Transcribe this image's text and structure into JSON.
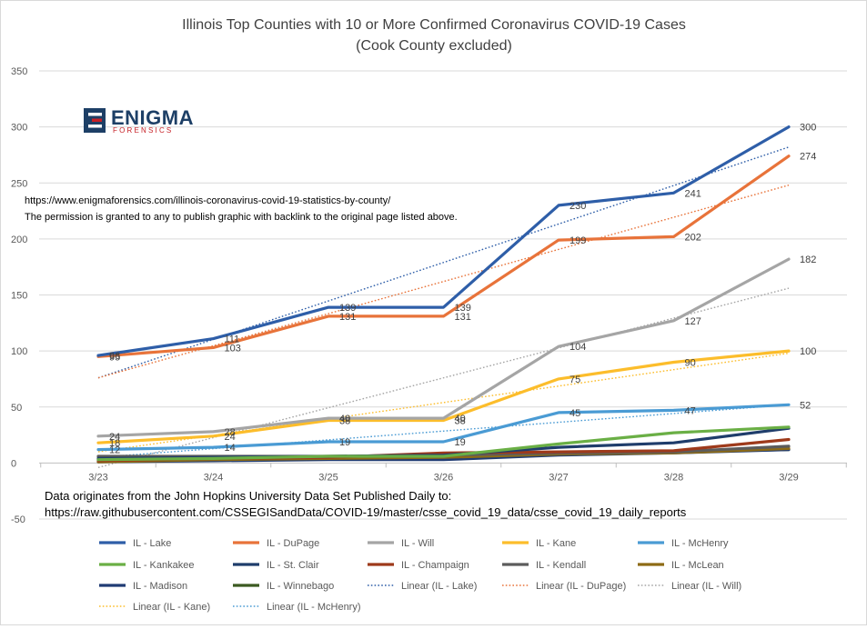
{
  "chart_data": {
    "type": "line",
    "title": "Illinois Top Counties with 10 or More Confirmed Coronavirus COVID-19 Cases",
    "subtitle": "(Cook County excluded)",
    "categories": [
      "3/23",
      "3/24",
      "3/25",
      "3/26",
      "3/27",
      "3/28",
      "3/29"
    ],
    "ylim": [
      -50,
      350
    ],
    "yticks": [
      -50,
      0,
      50,
      100,
      150,
      200,
      250,
      300,
      350
    ],
    "grid": true,
    "legend_position": "bottom",
    "series": [
      {
        "name": "IL - Lake",
        "color": "#2e5ea8",
        "values": [
          96,
          111,
          139,
          139,
          230,
          241,
          300
        ],
        "labels": [
          "96",
          "111",
          "139",
          "139",
          "230",
          "241",
          "300"
        ]
      },
      {
        "name": "IL - DuPage",
        "color": "#e8733a",
        "values": [
          95,
          103,
          131,
          131,
          199,
          202,
          274
        ],
        "labels": [
          "95",
          "103",
          "131",
          "131",
          "199",
          "202",
          "274"
        ]
      },
      {
        "name": "IL - Will",
        "color": "#a5a5a5",
        "values": [
          24,
          28,
          40,
          40,
          104,
          127,
          182
        ],
        "labels": [
          "24",
          "28",
          "40",
          "40",
          "104",
          "127",
          "182"
        ]
      },
      {
        "name": "IL - Kane",
        "color": "#fcbd2b",
        "values": [
          18,
          24,
          38,
          38,
          75,
          90,
          100
        ],
        "labels": [
          "18",
          "24",
          "38",
          "38",
          "75",
          "90",
          "100"
        ]
      },
      {
        "name": "IL - McHenry",
        "color": "#4a9bd4",
        "values": [
          12,
          14,
          19,
          19,
          45,
          47,
          52
        ],
        "labels": [
          "12",
          "14",
          "19",
          "19",
          "45",
          "47",
          "52"
        ]
      },
      {
        "name": "IL - Kankakee",
        "color": "#6aaf45",
        "values": [
          3,
          4,
          6,
          6,
          17,
          27,
          32
        ],
        "labels": []
      },
      {
        "name": "IL - St. Clair",
        "color": "#1f3d6b",
        "values": [
          4,
          5,
          6,
          7,
          14,
          18,
          31
        ],
        "labels": []
      },
      {
        "name": "IL - Champaign",
        "color": "#9e3a1b",
        "values": [
          2,
          4,
          5,
          9,
          10,
          11,
          21
        ],
        "labels": []
      },
      {
        "name": "IL - Kendall",
        "color": "#5c5c5c",
        "values": [
          6,
          6,
          6,
          7,
          9,
          10,
          15
        ],
        "labels": []
      },
      {
        "name": "IL - McLean",
        "color": "#8d6b16",
        "values": [
          1,
          3,
          4,
          5,
          8,
          9,
          13
        ],
        "labels": []
      },
      {
        "name": "IL - Madison",
        "color": "#203c74",
        "values": [
          1,
          2,
          3,
          3,
          7,
          9,
          12
        ],
        "labels": []
      },
      {
        "name": "IL - Winnebago",
        "color": "#3c5a22",
        "values": [
          3,
          4,
          5,
          5,
          8,
          10,
          12
        ],
        "labels": []
      }
    ],
    "trendlines": [
      {
        "name": "Linear (IL - Lake)",
        "color": "#2e5ea8",
        "from": 76,
        "to": 282
      },
      {
        "name": "Linear (IL - DuPage)",
        "color": "#e8733a",
        "from": 76,
        "to": 248
      },
      {
        "name": "Linear (IL - Will)",
        "color": "#a5a5a5",
        "from": -4,
        "to": 156
      },
      {
        "name": "Linear (IL - Kane)",
        "color": "#fcbd2b",
        "from": 10,
        "to": 98
      },
      {
        "name": "Linear (IL - McHenry)",
        "color": "#4a9bd4",
        "from": 5,
        "to": 52
      }
    ],
    "annotations": {
      "url": "https://www.enigmaforensics.com/illinois-coronavirus-covid-19-statistics-by-county/",
      "permission": "The permission is granted to any to publish graphic with backlink to the original page listed above.",
      "source_line1": "Data originates from the John Hopkins University Data Set Published Daily to:",
      "source_line2": "https://raw.githubusercontent.com/CSSEGISandData/COVID-19/master/csse_covid_19_data/csse_covid_19_daily_reports"
    },
    "logo": {
      "word": "ENIGMA",
      "sub": "FORENSICS",
      "mark": "E",
      "color_dark": "#1d3f66",
      "color_accent": "#c62026"
    }
  }
}
